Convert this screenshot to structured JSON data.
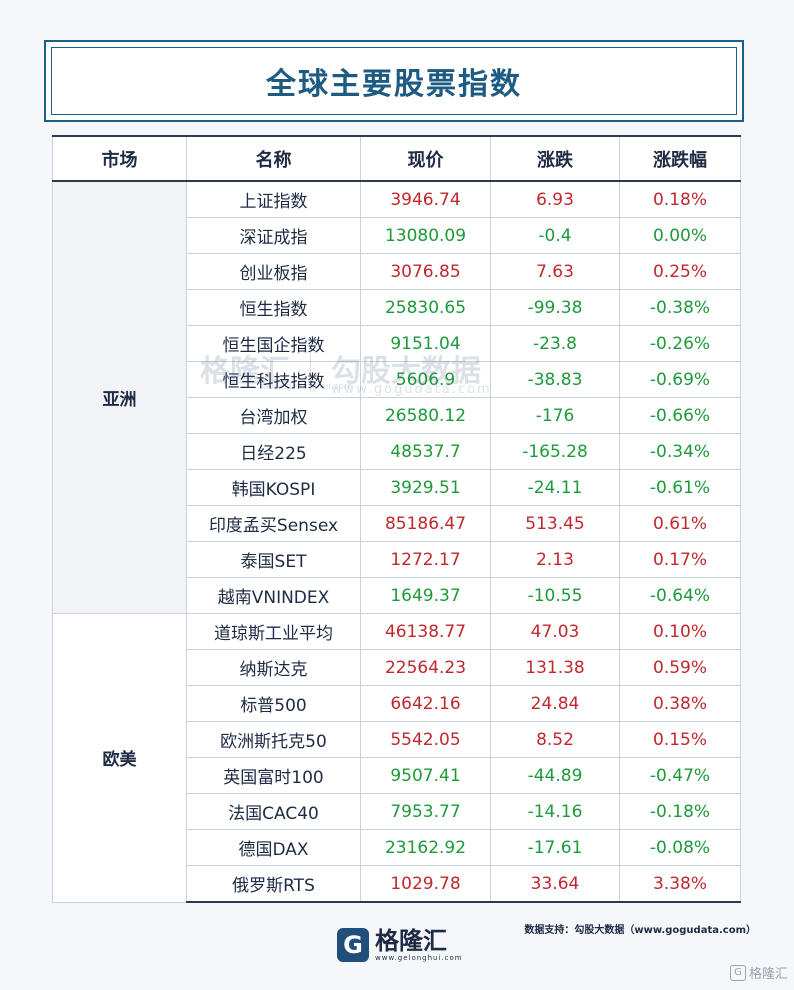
{
  "title": "全球主要股票指数",
  "headers": [
    "市场",
    "名称",
    "现价",
    "涨跌",
    "涨跌幅"
  ],
  "colors": {
    "up": "#c0282e",
    "down": "#1e9a3a",
    "title": "#1d5b83"
  },
  "groups": [
    {
      "market": "亚洲",
      "rows": [
        {
          "name": "上证指数",
          "price": "3946.74",
          "change": "6.93",
          "pct": "0.18%",
          "dir": "up"
        },
        {
          "name": "深证成指",
          "price": "13080.09",
          "change": "-0.4",
          "pct": "0.00%",
          "dir": "down"
        },
        {
          "name": "创业板指",
          "price": "3076.85",
          "change": "7.63",
          "pct": "0.25%",
          "dir": "up"
        },
        {
          "name": "恒生指数",
          "price": "25830.65",
          "change": "-99.38",
          "pct": "-0.38%",
          "dir": "down"
        },
        {
          "name": "恒生国企指数",
          "price": "9151.04",
          "change": "-23.8",
          "pct": "-0.26%",
          "dir": "down"
        },
        {
          "name": "恒生科技指数",
          "price": "5606.9",
          "change": "-38.83",
          "pct": "-0.69%",
          "dir": "down"
        },
        {
          "name": "台湾加权",
          "price": "26580.12",
          "change": "-176",
          "pct": "-0.66%",
          "dir": "down"
        },
        {
          "name": "日经225",
          "price": "48537.7",
          "change": "-165.28",
          "pct": "-0.34%",
          "dir": "down"
        },
        {
          "name": "韩国KOSPI",
          "price": "3929.51",
          "change": "-24.11",
          "pct": "-0.61%",
          "dir": "down"
        },
        {
          "name": "印度孟买Sensex",
          "price": "85186.47",
          "change": "513.45",
          "pct": "0.61%",
          "dir": "up"
        },
        {
          "name": "泰国SET",
          "price": "1272.17",
          "change": "2.13",
          "pct": "0.17%",
          "dir": "up"
        },
        {
          "name": "越南VNINDEX",
          "price": "1649.37",
          "change": "-10.55",
          "pct": "-0.64%",
          "dir": "down"
        }
      ]
    },
    {
      "market": "欧美",
      "rows": [
        {
          "name": "道琼斯工业平均",
          "price": "46138.77",
          "change": "47.03",
          "pct": "0.10%",
          "dir": "up"
        },
        {
          "name": "纳斯达克",
          "price": "22564.23",
          "change": "131.38",
          "pct": "0.59%",
          "dir": "up"
        },
        {
          "name": "标普500",
          "price": "6642.16",
          "change": "24.84",
          "pct": "0.38%",
          "dir": "up"
        },
        {
          "name": "欧洲斯托克50",
          "price": "5542.05",
          "change": "8.52",
          "pct": "0.15%",
          "dir": "up"
        },
        {
          "name": "英国富时100",
          "price": "9507.41",
          "change": "-44.89",
          "pct": "-0.47%",
          "dir": "down"
        },
        {
          "name": "法国CAC40",
          "price": "7953.77",
          "change": "-14.16",
          "pct": "-0.18%",
          "dir": "down"
        },
        {
          "name": "德国DAX",
          "price": "23162.92",
          "change": "-17.61",
          "pct": "-0.08%",
          "dir": "down"
        },
        {
          "name": "俄罗斯RTS",
          "price": "1029.78",
          "change": "33.64",
          "pct": "3.38%",
          "dir": "up"
        }
      ]
    }
  ],
  "watermark": {
    "brand": "格隆汇",
    "brand_url": "www.gelonghui.com",
    "partner": "勾股大数据",
    "partner_url": "www.gogudata.com"
  },
  "footer": {
    "logo_mark": "G",
    "logo_text": "格隆汇",
    "logo_url": "www.gelonghui.com",
    "source": "数据支持：勾股大数据（www.gogudata.com）",
    "corner_badge": "格隆汇",
    "corner_icon": "G"
  }
}
